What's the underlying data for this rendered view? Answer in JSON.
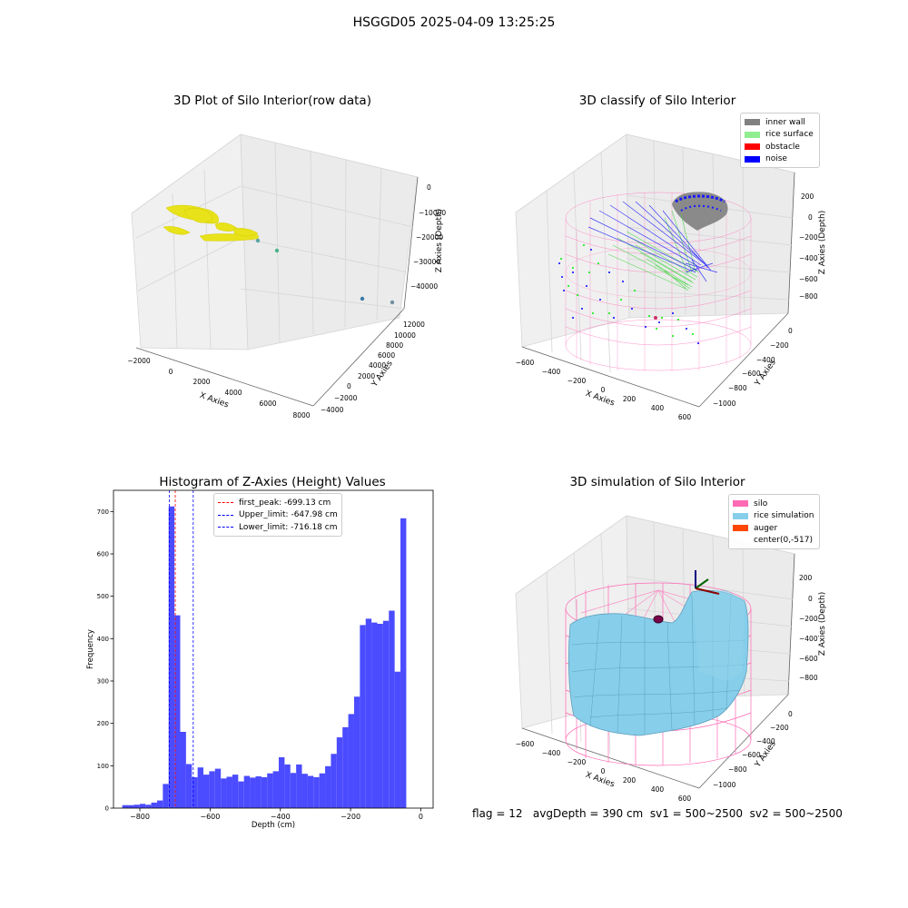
{
  "suptitle": "HSGGD05 2025-04-09 13:25:25",
  "status_text": "flag = 12   avgDepth = 390 cm  sv1 = 500~2500  sv2 = 500~2500",
  "chart_data": [
    {
      "type": "scatter",
      "title": "3D Plot of Silo Interior(row data)",
      "xlabel": "X Axies",
      "ylabel": "Y Axies",
      "zlabel": "Z Axies (Depth)",
      "xticks": [
        "−2000",
        "0",
        "2000",
        "4000",
        "6000",
        "8000"
      ],
      "yticks": [
        "−4000",
        "−2000",
        "0",
        "2000",
        "4000",
        "6000",
        "8000",
        "10000",
        "12000"
      ],
      "zticks": [
        "0",
        "−10000",
        "−20000",
        "−30000",
        "−40000"
      ],
      "xlim": [
        -2000,
        8000
      ],
      "ylim": [
        -4000,
        12000
      ],
      "zlim": [
        -45000,
        0
      ],
      "point_color": "#e8e21a",
      "outlier_points": [
        {
          "x": 2500,
          "y": 2500,
          "z": -20000
        },
        {
          "x": 3500,
          "y": 2000,
          "z": -30000
        },
        {
          "x": 6500,
          "y": 1500,
          "z": -40000
        },
        {
          "x": 7800,
          "y": 1000,
          "z": -45000
        }
      ]
    },
    {
      "type": "scatter",
      "title": "3D classify of Silo Interior",
      "xlabel": "X Axies",
      "ylabel": "Y Axies",
      "zlabel": "Z Axies (Depth)",
      "xticks": [
        "−600",
        "−400",
        "−200",
        "0",
        "200",
        "400",
        "600"
      ],
      "yticks": [
        "0",
        "−200",
        "−400",
        "−600",
        "−800",
        "−1000"
      ],
      "zticks": [
        "200",
        "0",
        "−200",
        "−400",
        "−600",
        "−800"
      ],
      "xlim": [
        -600,
        600
      ],
      "ylim": [
        -1000,
        0
      ],
      "zlim": [
        -900,
        300
      ],
      "legend": [
        {
          "label": "inner wall",
          "color": "#808080"
        },
        {
          "label": "rice surface",
          "color": "#90ee90"
        },
        {
          "label": "obstacle",
          "color": "#ff0000"
        },
        {
          "label": "noise",
          "color": "#0000ff"
        }
      ],
      "legend_position": "top-right",
      "silo_color": "#ff69b4"
    },
    {
      "type": "bar",
      "title": "Histogram of Z-Axies (Height) Values",
      "xlabel": "Depth (cm)",
      "ylabel": "Frequency",
      "xlim": [
        -875,
        35
      ],
      "ylim": [
        0,
        750
      ],
      "xticks": [
        -800,
        -600,
        -400,
        -200,
        0
      ],
      "xtick_labels": [
        "−800",
        "−600",
        "−400",
        "−200",
        "0"
      ],
      "yticks": [
        0,
        100,
        200,
        300,
        400,
        500,
        600,
        700
      ],
      "bar_color": "#4b4bff",
      "bin_start": -850,
      "bin_width": 16.5,
      "values": [
        7,
        7,
        8,
        10,
        8,
        13,
        18,
        57,
        712,
        455,
        180,
        104,
        73,
        96,
        79,
        87,
        93,
        70,
        74,
        79,
        63,
        76,
        72,
        75,
        73,
        82,
        87,
        120,
        103,
        83,
        103,
        81,
        76,
        73,
        82,
        99,
        128,
        167,
        191,
        222,
        263,
        432,
        447,
        438,
        435,
        442,
        466,
        322,
        684
      ],
      "reference_lines": [
        {
          "label": "first_peak: -699.13 cm",
          "x": -699.13,
          "color": "#ff0000"
        },
        {
          "label": "Upper_limit: -647.98 cm",
          "x": -647.98,
          "color": "#0000ff"
        },
        {
          "label": "Lower_limit: -716.18 cm",
          "x": -716.18,
          "color": "#0000ff"
        }
      ],
      "legend_position": "upper center"
    },
    {
      "type": "surface",
      "title": "3D simulation of Silo Interior",
      "xlabel": "X Axies",
      "ylabel": "Y Axies",
      "zlabel": "Z Axies (Depth)",
      "xticks": [
        "−600",
        "−400",
        "−200",
        "0",
        "200",
        "400",
        "600"
      ],
      "yticks": [
        "0",
        "−200",
        "−400",
        "−600",
        "−800",
        "−1000"
      ],
      "zticks": [
        "200",
        "0",
        "−200",
        "−400",
        "−600",
        "−800"
      ],
      "xlim": [
        -600,
        600
      ],
      "ylim": [
        -1000,
        0
      ],
      "zlim": [
        -900,
        300
      ],
      "legend": [
        {
          "label": "silo",
          "color": "#ff69b4"
        },
        {
          "label": "rice simulation",
          "color": "#87ceeb"
        },
        {
          "label": "auger",
          "color": "#ff4500"
        },
        {
          "label": "center(0,-517)",
          "color": ""
        }
      ],
      "legend_position": "top-right"
    }
  ]
}
